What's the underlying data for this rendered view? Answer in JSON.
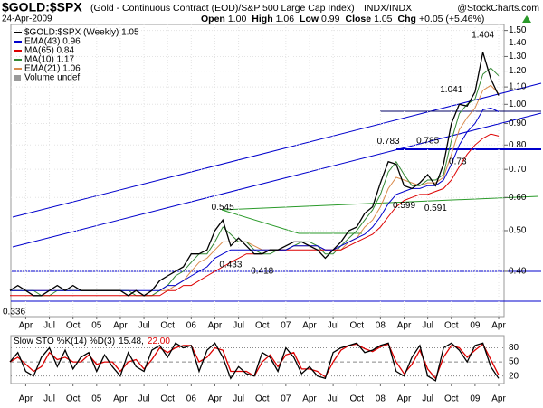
{
  "header": {
    "title": "$GOLD:$SPX",
    "subtitle": "(Gold - Continuous Contract (EOD)/S&P 500 Large Cap Index)",
    "exchange": "INDX/INDX",
    "source": "@StockCharts.com",
    "date": "24-Apr-2009",
    "quote": [
      {
        "label": "Open",
        "value": "1.00"
      },
      {
        "label": "High",
        "value": "1.06"
      },
      {
        "label": "Low",
        "value": "0.99"
      },
      {
        "label": "Close",
        "value": "1.05"
      },
      {
        "label": "Chg",
        "value": "+0.05 (+5.46%)"
      }
    ]
  },
  "chart_data": [
    {
      "type": "line",
      "log_scale": true,
      "grid": true,
      "volume_label": "Volume undef",
      "x": [
        "2004-02",
        "2004-03",
        "2004-04",
        "2004-05",
        "2004-06",
        "2004-07",
        "2004-08",
        "2004-09",
        "2004-10",
        "2004-11",
        "2004-12",
        "2005-01",
        "2005-02",
        "2005-03",
        "2005-04",
        "2005-05",
        "2005-06",
        "2005-07",
        "2005-08",
        "2005-09",
        "2005-10",
        "2005-11",
        "2005-12",
        "2006-01",
        "2006-02",
        "2006-03",
        "2006-04",
        "2006-05",
        "2006-06",
        "2006-07",
        "2006-08",
        "2006-09",
        "2006-10",
        "2006-11",
        "2006-12",
        "2007-01",
        "2007-02",
        "2007-03",
        "2007-04",
        "2007-05",
        "2007-06",
        "2007-07",
        "2007-08",
        "2007-09",
        "2007-10",
        "2007-11",
        "2007-12",
        "2008-01",
        "2008-02",
        "2008-03",
        "2008-04",
        "2008-05",
        "2008-06",
        "2008-07",
        "2008-08",
        "2008-09",
        "2008-10",
        "2008-11",
        "2008-12",
        "2009-01",
        "2009-02",
        "2009-03",
        "2009-04"
      ],
      "xticks": [
        {
          "value": "2004-04",
          "label": "Apr"
        },
        {
          "value": "2004-07",
          "label": "Jul"
        },
        {
          "value": "2004-10",
          "label": "Oct"
        },
        {
          "value": "2005-01",
          "label": "05"
        },
        {
          "value": "2005-04",
          "label": "Apr"
        },
        {
          "value": "2005-07",
          "label": "Jul"
        },
        {
          "value": "2005-10",
          "label": "Oct"
        },
        {
          "value": "2006-01",
          "label": "06"
        },
        {
          "value": "2006-04",
          "label": "Apr"
        },
        {
          "value": "2006-07",
          "label": "Jul"
        },
        {
          "value": "2006-10",
          "label": "Oct"
        },
        {
          "value": "2007-01",
          "label": "07"
        },
        {
          "value": "2007-04",
          "label": "Apr"
        },
        {
          "value": "2007-07",
          "label": "Jul"
        },
        {
          "value": "2007-10",
          "label": "Oct"
        },
        {
          "value": "2008-01",
          "label": "08"
        },
        {
          "value": "2008-04",
          "label": "Apr"
        },
        {
          "value": "2008-07",
          "label": "Jul"
        },
        {
          "value": "2008-10",
          "label": "Oct"
        },
        {
          "value": "2009-01",
          "label": "09"
        },
        {
          "value": "2009-04",
          "label": "Apr"
        }
      ],
      "ylim": [
        0.312,
        1.55
      ],
      "yticks": [
        {
          "value": 0.4,
          "label": "0.40"
        },
        {
          "value": 0.5,
          "label": "0.50"
        },
        {
          "value": 0.6,
          "label": "0.60"
        },
        {
          "value": 0.7,
          "label": "0.70"
        },
        {
          "value": 0.8,
          "label": "0.80"
        },
        {
          "value": 0.9,
          "label": "0.90"
        },
        {
          "value": 1.0,
          "label": "1.00"
        },
        {
          "value": 1.1,
          "label": "1.10"
        },
        {
          "value": 1.2,
          "label": "1.20"
        },
        {
          "value": 1.3,
          "label": "1.30"
        },
        {
          "value": 1.4,
          "label": "1.40"
        },
        {
          "value": 1.5,
          "label": "1.50"
        }
      ],
      "series": [
        {
          "name": "$GOLD:$SPX (Weekly) 1.05",
          "color": "#000000",
          "values": [
            0.36,
            0.37,
            0.36,
            0.35,
            0.35,
            0.36,
            0.37,
            0.36,
            0.37,
            0.36,
            0.36,
            0.36,
            0.36,
            0.36,
            0.36,
            0.35,
            0.36,
            0.35,
            0.36,
            0.38,
            0.39,
            0.4,
            0.41,
            0.44,
            0.44,
            0.45,
            0.5,
            0.53,
            0.46,
            0.48,
            0.46,
            0.44,
            0.44,
            0.45,
            0.45,
            0.46,
            0.47,
            0.47,
            0.46,
            0.45,
            0.43,
            0.45,
            0.47,
            0.5,
            0.51,
            0.55,
            0.57,
            0.65,
            0.73,
            0.72,
            0.64,
            0.63,
            0.65,
            0.68,
            0.64,
            0.72,
            0.9,
            1.0,
            0.99,
            1.07,
            1.33,
            1.15,
            1.05
          ]
        },
        {
          "name": "EMA(43) 0.96",
          "color": "#0000cc",
          "values": [
            0.36,
            0.36,
            0.36,
            0.36,
            0.36,
            0.36,
            0.36,
            0.36,
            0.36,
            0.36,
            0.36,
            0.36,
            0.36,
            0.36,
            0.36,
            0.36,
            0.36,
            0.36,
            0.36,
            0.36,
            0.37,
            0.37,
            0.38,
            0.39,
            0.4,
            0.41,
            0.43,
            0.44,
            0.45,
            0.45,
            0.45,
            0.45,
            0.45,
            0.45,
            0.45,
            0.45,
            0.46,
            0.46,
            0.46,
            0.46,
            0.45,
            0.45,
            0.46,
            0.47,
            0.48,
            0.49,
            0.51,
            0.54,
            0.58,
            0.61,
            0.62,
            0.63,
            0.63,
            0.64,
            0.64,
            0.66,
            0.72,
            0.8,
            0.86,
            0.9,
            0.97,
            0.98,
            0.96
          ]
        },
        {
          "name": "MA(65) 0.84",
          "color": "#dd0000",
          "values": [
            0.35,
            0.35,
            0.35,
            0.35,
            0.35,
            0.35,
            0.35,
            0.35,
            0.35,
            0.35,
            0.35,
            0.35,
            0.35,
            0.35,
            0.35,
            0.35,
            0.35,
            0.35,
            0.35,
            0.35,
            0.36,
            0.36,
            0.37,
            0.37,
            0.38,
            0.39,
            0.4,
            0.41,
            0.42,
            0.43,
            0.44,
            0.44,
            0.44,
            0.45,
            0.45,
            0.45,
            0.45,
            0.45,
            0.45,
            0.45,
            0.45,
            0.45,
            0.45,
            0.46,
            0.47,
            0.48,
            0.49,
            0.51,
            0.54,
            0.57,
            0.59,
            0.6,
            0.61,
            0.61,
            0.62,
            0.63,
            0.66,
            0.71,
            0.76,
            0.8,
            0.83,
            0.85,
            0.84
          ]
        },
        {
          "name": "MA(10) 1.17",
          "color": "#338833",
          "values": [
            0.36,
            0.36,
            0.36,
            0.36,
            0.35,
            0.35,
            0.36,
            0.36,
            0.36,
            0.36,
            0.36,
            0.36,
            0.36,
            0.36,
            0.36,
            0.36,
            0.35,
            0.35,
            0.35,
            0.36,
            0.37,
            0.39,
            0.4,
            0.42,
            0.44,
            0.44,
            0.47,
            0.51,
            0.49,
            0.47,
            0.47,
            0.45,
            0.44,
            0.44,
            0.45,
            0.45,
            0.46,
            0.47,
            0.47,
            0.46,
            0.44,
            0.44,
            0.46,
            0.48,
            0.5,
            0.53,
            0.56,
            0.61,
            0.69,
            0.73,
            0.68,
            0.64,
            0.64,
            0.66,
            0.66,
            0.68,
            0.82,
            0.95,
            1.0,
            1.03,
            1.18,
            1.22,
            1.17
          ]
        },
        {
          "name": "EMA(21) 1.06",
          "color": "#d98a4a",
          "values": [
            0.36,
            0.36,
            0.36,
            0.36,
            0.36,
            0.36,
            0.36,
            0.36,
            0.36,
            0.36,
            0.36,
            0.36,
            0.36,
            0.36,
            0.36,
            0.36,
            0.36,
            0.35,
            0.35,
            0.36,
            0.36,
            0.37,
            0.38,
            0.4,
            0.42,
            0.43,
            0.45,
            0.47,
            0.47,
            0.47,
            0.47,
            0.46,
            0.45,
            0.45,
            0.45,
            0.45,
            0.46,
            0.46,
            0.46,
            0.46,
            0.45,
            0.45,
            0.45,
            0.47,
            0.48,
            0.51,
            0.53,
            0.57,
            0.63,
            0.67,
            0.66,
            0.65,
            0.64,
            0.65,
            0.65,
            0.67,
            0.76,
            0.87,
            0.93,
            0.98,
            1.08,
            1.11,
            1.06
          ]
        }
      ],
      "annotations": [
        {
          "x": "2004-05",
          "value": 0.336
        },
        {
          "x": "2006-06",
          "value": 0.433
        },
        {
          "x": "2006-10",
          "value": 0.418
        },
        {
          "x": "2006-05",
          "value": 0.545
        },
        {
          "x": "2008-02",
          "value": 0.783
        },
        {
          "x": "2008-07",
          "value": 0.785
        },
        {
          "x": "2008-04",
          "value": 0.599
        },
        {
          "x": "2008-08",
          "value": 0.591
        },
        {
          "x": "2008-09",
          "value": 0.73
        },
        {
          "x": "2008-10",
          "value": 1.041
        },
        {
          "x": "2009-02",
          "value": 1.404
        }
      ]
    },
    {
      "type": "line",
      "title": "Slow STO %K(14) %D(3)",
      "ylim": [
        4,
        106
      ],
      "yticks": [
        20,
        50,
        80
      ],
      "series": [
        {
          "label": "15.48,",
          "color": "#000000",
          "values": [
            50,
            70,
            30,
            20,
            60,
            80,
            40,
            75,
            35,
            60,
            70,
            30,
            65,
            40,
            20,
            70,
            40,
            30,
            75,
            85,
            60,
            90,
            80,
            85,
            30,
            75,
            90,
            60,
            15,
            40,
            25,
            20,
            70,
            60,
            30,
            80,
            60,
            25,
            40,
            20,
            15,
            70,
            80,
            85,
            90,
            70,
            75,
            85,
            90,
            30,
            20,
            60,
            85,
            20,
            10,
            80,
            90,
            75,
            50,
            85,
            90,
            40,
            15
          ]
        },
        {
          "label": "22.00",
          "color": "#dd0000",
          "values": [
            50,
            60,
            45,
            30,
            40,
            70,
            55,
            60,
            50,
            50,
            65,
            45,
            50,
            50,
            30,
            50,
            55,
            35,
            55,
            80,
            70,
            80,
            85,
            85,
            50,
            60,
            80,
            75,
            30,
            30,
            30,
            20,
            50,
            65,
            40,
            65,
            70,
            35,
            35,
            30,
            18,
            50,
            75,
            85,
            88,
            78,
            72,
            82,
            88,
            50,
            25,
            45,
            75,
            35,
            15,
            60,
            85,
            80,
            60,
            75,
            88,
            55,
            22
          ]
        }
      ]
    }
  ]
}
